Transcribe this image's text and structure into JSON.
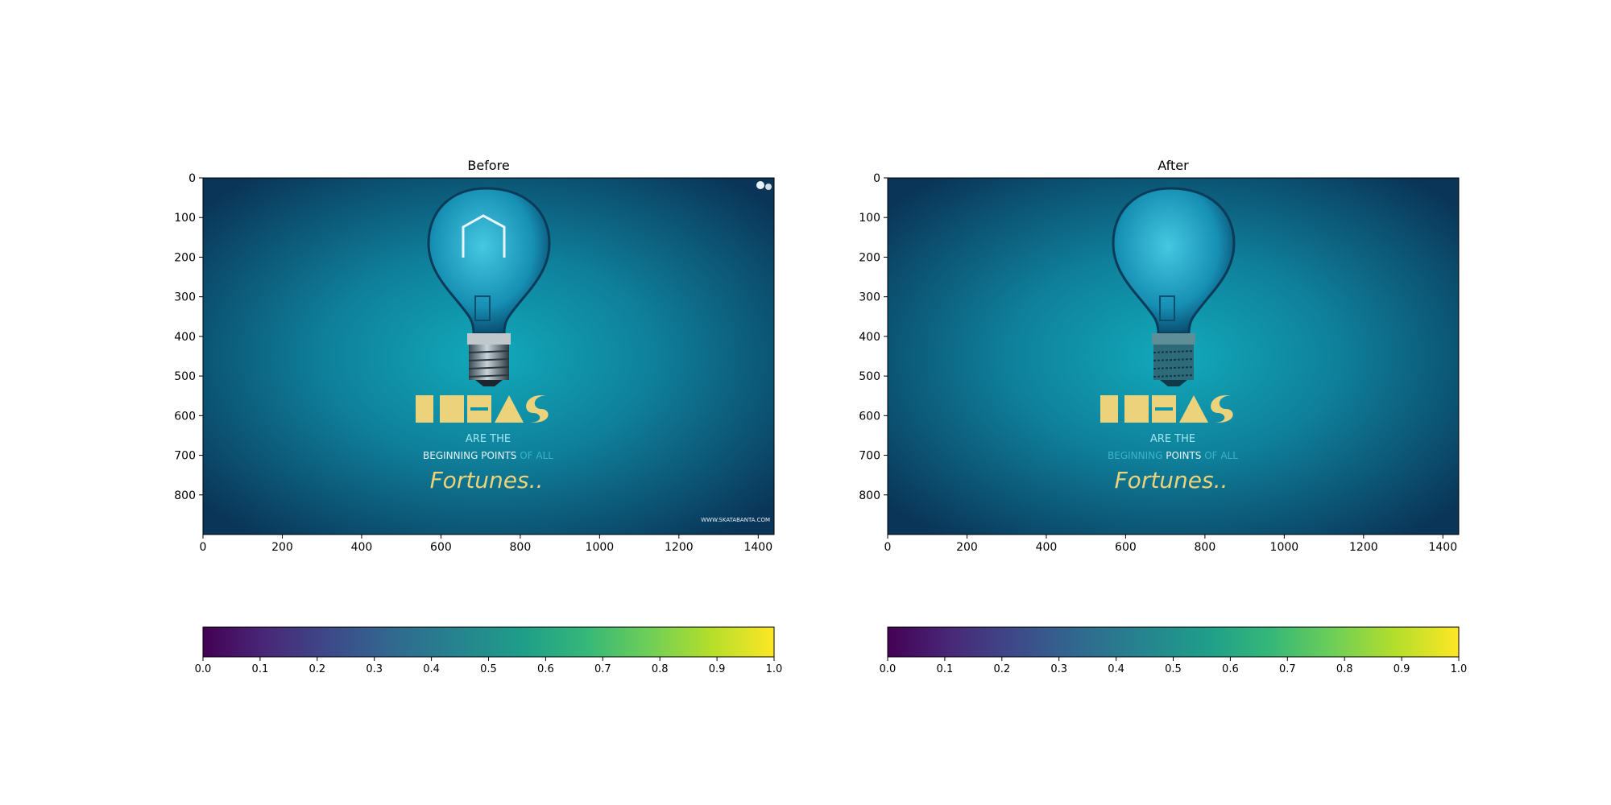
{
  "chart_data": [
    {
      "type": "image",
      "title": "Before",
      "xlim": [
        0,
        1440
      ],
      "ylim": [
        900,
        0
      ],
      "xticks": [
        0,
        200,
        400,
        600,
        800,
        1000,
        1200,
        1400
      ],
      "yticks": [
        0,
        100,
        200,
        300,
        400,
        500,
        600,
        700,
        800
      ],
      "image_text": {
        "headline": "IDEAS",
        "line1": "ARE THE",
        "line2a": "BEGINNING",
        "line2b": "POINTS",
        "line2c": "OF ALL",
        "line3": "Fortunes..",
        "credit": "WWW.SKATABANTA.COM"
      },
      "colorbar": {
        "colormap": "viridis",
        "range": [
          0.0,
          1.0
        ],
        "ticks": [
          "0.0",
          "0.1",
          "0.2",
          "0.3",
          "0.4",
          "0.5",
          "0.6",
          "0.7",
          "0.8",
          "0.9",
          "1.0"
        ]
      }
    },
    {
      "type": "image",
      "title": "After",
      "xlim": [
        0,
        1440
      ],
      "ylim": [
        900,
        0
      ],
      "xticks": [
        0,
        200,
        400,
        600,
        800,
        1000,
        1200,
        1400
      ],
      "yticks": [
        0,
        100,
        200,
        300,
        400,
        500,
        600,
        700,
        800
      ],
      "image_text": {
        "headline": "IDEAS",
        "line1": "ARE THE",
        "line2a": "BEGINNING",
        "line2b": "POINTS",
        "line2c": "OF ALL",
        "line3": "Fortunes.."
      },
      "colorbar": {
        "colormap": "viridis",
        "range": [
          0.0,
          1.0
        ],
        "ticks": [
          "0.0",
          "0.1",
          "0.2",
          "0.3",
          "0.4",
          "0.5",
          "0.6",
          "0.7",
          "0.8",
          "0.9",
          "1.0"
        ]
      }
    }
  ],
  "colors": {
    "image_center": "#12aabb",
    "image_edge": "#0a3558",
    "headline": "#ecd27a",
    "subtitle": "#9fe6ef",
    "axis": "#000000",
    "viridis": [
      "#440154",
      "#482878",
      "#3e4989",
      "#31688e",
      "#26828e",
      "#1f9e89",
      "#35b779",
      "#6ece58",
      "#b5de2b",
      "#fde725"
    ]
  }
}
